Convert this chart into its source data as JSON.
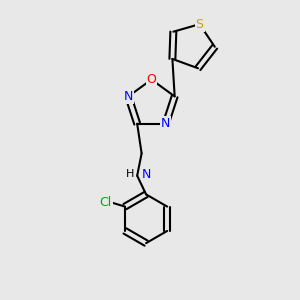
{
  "bg_color": "#e8e8e8",
  "bond_color": "#000000",
  "atom_colors": {
    "S": "#c8a800",
    "O": "#ff0000",
    "N": "#0000ff",
    "Cl": "#00aa00",
    "H": "#000000",
    "C": "#000000"
  },
  "figsize": [
    3.0,
    3.0
  ],
  "dpi": 100
}
